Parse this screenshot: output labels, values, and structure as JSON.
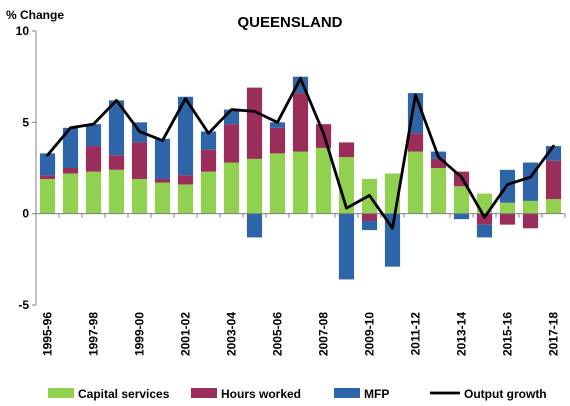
{
  "chart_data": {
    "type": "bar",
    "title": "QUEENSLAND",
    "ylabel": "% Change",
    "xlabel": "",
    "ylim": [
      -5,
      10
    ],
    "yticks": [
      -5,
      0,
      5,
      10
    ],
    "stacked": true,
    "grid": false,
    "legend_position": "bottom",
    "categories": [
      "1995-96",
      "1996-97",
      "1997-98",
      "1998-99",
      "1999-00",
      "2000-01",
      "2001-02",
      "2002-03",
      "2003-04",
      "2004-05",
      "2005-06",
      "2006-07",
      "2007-08",
      "2008-09",
      "2009-10",
      "2010-11",
      "2011-12",
      "2012-13",
      "2013-14",
      "2014-15",
      "2015-16",
      "2016-17",
      "2017-18"
    ],
    "labeled_categories": [
      "1995-96",
      "1997-98",
      "1999-00",
      "2001-02",
      "2003-04",
      "2005-06",
      "2007-08",
      "2009-10",
      "2011-12",
      "2013-14",
      "2015-16",
      "2017-18"
    ],
    "series": [
      {
        "name": "Capital services",
        "kind": "bar",
        "color": "#92d050",
        "values": [
          1.9,
          2.2,
          2.3,
          2.4,
          1.9,
          1.7,
          1.6,
          2.3,
          2.8,
          3.0,
          3.3,
          3.4,
          3.6,
          3.1,
          1.9,
          2.2,
          3.4,
          2.5,
          1.5,
          1.1,
          0.6,
          0.7,
          0.8
        ]
      },
      {
        "name": "Hours worked",
        "kind": "bar",
        "color": "#9b2d5a",
        "values": [
          0.2,
          0.3,
          1.4,
          0.8,
          2.0,
          0.2,
          0.5,
          1.2,
          2.1,
          3.9,
          1.4,
          3.2,
          1.3,
          0.8,
          -0.4,
          0.0,
          1.0,
          0.5,
          0.8,
          -0.6,
          -0.6,
          -0.8,
          2.1
        ]
      },
      {
        "name": "MFP",
        "kind": "bar",
        "color": "#2e64a8",
        "values": [
          1.2,
          2.2,
          1.2,
          3.0,
          1.1,
          2.2,
          4.3,
          1.0,
          0.8,
          -1.3,
          0.3,
          0.9,
          0.0,
          -3.6,
          -0.5,
          -2.9,
          2.2,
          0.4,
          -0.3,
          -0.7,
          1.8,
          2.1,
          0.8
        ]
      },
      {
        "name": "Output growth",
        "kind": "line",
        "color": "#000000",
        "values": [
          3.2,
          4.7,
          4.9,
          6.2,
          4.5,
          4.0,
          6.3,
          4.4,
          5.7,
          5.6,
          5.0,
          7.4,
          4.4,
          0.3,
          1.0,
          -0.8,
          6.5,
          3.1,
          2.0,
          -0.2,
          1.6,
          2.0,
          3.7
        ]
      }
    ]
  }
}
